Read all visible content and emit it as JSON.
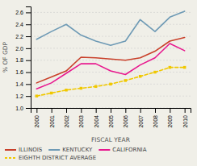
{
  "chart_data": {
    "type": "line",
    "xlabel": "FISCAL YEAR",
    "ylabel": "% OF GDP",
    "x": [
      2000,
      2001,
      2002,
      2003,
      2004,
      2005,
      2006,
      2007,
      2008,
      2009,
      2010
    ],
    "series": [
      {
        "name": "ILLINOIS",
        "color": "#c9402a",
        "values": [
          1.42,
          1.52,
          1.62,
          1.85,
          1.84,
          1.82,
          1.8,
          1.84,
          1.95,
          2.12,
          2.18
        ]
      },
      {
        "name": "KENTUCKY",
        "color": "#6e9ab5",
        "values": [
          2.15,
          2.28,
          2.4,
          2.22,
          2.12,
          2.05,
          2.12,
          2.48,
          2.28,
          2.52,
          2.62
        ]
      },
      {
        "name": "CALIFORNIA",
        "color": "#e8188e",
        "values": [
          1.32,
          1.42,
          1.58,
          1.74,
          1.74,
          1.62,
          1.56,
          1.72,
          1.84,
          2.08,
          1.96
        ]
      },
      {
        "name": "EIGHTH DISTRICT AVERAGE",
        "color": "#f0c800",
        "line_style": "dashed",
        "marker": "square",
        "values": [
          1.2,
          1.25,
          1.3,
          1.33,
          1.36,
          1.4,
          1.46,
          1.53,
          1.6,
          1.68,
          1.68
        ]
      }
    ],
    "xlim": [
      1999.6,
      2010.4
    ],
    "xticks": [
      2000,
      2001,
      2002,
      2003,
      2004,
      2005,
      2006,
      2007,
      2008,
      2009,
      2010
    ],
    "ylim": [
      1.0,
      2.7
    ],
    "yticks": [
      {
        "value": 1.0,
        "label": "1.0"
      },
      {
        "value": 1.2,
        "label": "1.2"
      },
      {
        "value": 1.4,
        "label": "1.4"
      },
      {
        "value": 1.6,
        "label": "1.6"
      },
      {
        "value": 1.8,
        "label": "1.8"
      },
      {
        "value": 2.0,
        "label": "2.0"
      },
      {
        "value": 2.2,
        "label": "2.2"
      },
      {
        "value": 2.4,
        "label": "2.4"
      },
      {
        "value": 2.6,
        "label": "2.6"
      }
    ],
    "grid": true,
    "legend": "bottom"
  }
}
